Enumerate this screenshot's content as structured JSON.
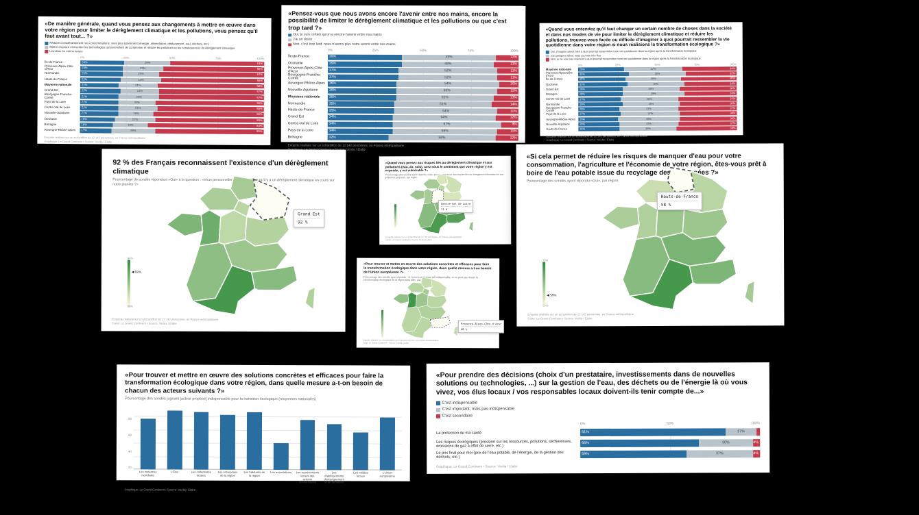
{
  "colors": {
    "blue": "#2a6d9f",
    "light": "#b8c3cc",
    "red": "#c4394b",
    "map_low": "#f6f6d3",
    "map_high": "#2e8b3a",
    "background": "#000000"
  },
  "footers_common": {
    "sample": "Enquête réalisée sur un échantillon de 12 142 personnes, en France métropolitaine",
    "credit_chart": "Graphique: Le Grand Continent • Source: Veolia / Elabe",
    "credit_map": "Carte: Le Grand Continent • Source: Veolia / Elabe"
  },
  "chart_data": [
    {
      "id": "priorities",
      "type": "stacked-bar-h",
      "title": "«De manière générale, quand vous pensez aux changements à mettre en œuvre dans votre région pour limiter le dérèglement climatique et les pollutions, vous pensez qu'il faut avant tout... ?»",
      "axis_ticks": [
        "0%",
        "25%",
        "50%",
        "75%",
        "100%"
      ],
      "bold_row": "Moyenne nationale",
      "min_label": 4,
      "categories": [
        "Île-de-France",
        "Provence-Alpes-Côte d'Azur",
        "Normandie",
        "Hauts-de-France",
        "Moyenne nationale",
        "Grand Est",
        "Bourgogne-Franche-Comté",
        "Pays de la Loire",
        "Centre-Val de Loire",
        "Nouvelle-Aquitaine",
        "Occitanie",
        "Bretagne",
        "Auvergne-Rhône-Alpes"
      ],
      "series": [
        {
          "name": "Réduire considérablement nos consommations, vivre plus sobrement (énergie, alimentation, déplacement, eau, déchets, etc.)",
          "color": "#2a6d9f",
          "values": [
            24,
            23,
            23,
            22,
            21,
            22,
            21,
            21,
            21,
            21,
            19,
            18,
            17
          ]
        },
        {
          "name": "Mettre en place et inventer les technologies qui permettent de compenser et réduire les pollutions et les conséquences du dérèglement climatique",
          "color": "#b8c3cc",
          "values": [
            25,
            22,
            20,
            22,
            21,
            21,
            22,
            20,
            21,
            19,
            22,
            19,
            24
          ]
        },
        {
          "name": "Les deux en même temps",
          "color": "#c4394b",
          "values": [
            51,
            55,
            57,
            56,
            58,
            57,
            57,
            59,
            58,
            60,
            59,
            63,
            59
          ]
        }
      ],
      "footers": {
        "line1": "Enquête réalisée sur un échantillon de 12 142 personnes, en France métropolitaine",
        "line2": "Graphique: Le Grand Continent • Source: Veolia / Elabe"
      }
    },
    {
      "id": "avenir",
      "type": "stacked-bar-h",
      "title": "«Pensez-vous que nous avons encore l'avenir entre nos mains, encore la possibilité de limiter le dérèglement climatique et les pollutions ou que c'est trop tard ?»",
      "axis_ticks": [
        "0%",
        "25%",
        "50%",
        "75%",
        "100%"
      ],
      "bold_row": "Moyenne nationale",
      "min_label": 4,
      "categories": [
        "Île-de-France",
        "Occitanie",
        "Provence-Alpes-Côte d'Azur",
        "Bourgogne-Franche-Comté",
        "Auvergne-Rhône-Alpes",
        "Nouvelle-Aquitaine",
        "Moyenne nationale",
        "Normandie",
        "Hauts-de-France",
        "Grand Est",
        "Centre-Val de Loire",
        "Pays de la Loire",
        "Bretagne"
      ],
      "series": [
        {
          "name": "Oui, je suis certain qu'on a encore l'avenir entre nos mains",
          "color": "#2a6d9f",
          "values": [
            39,
            39,
            37,
            37,
            36,
            36,
            36,
            35,
            35,
            34,
            34,
            34,
            32
          ]
        },
        {
          "name": "J'ai un doute",
          "color": "#b8c3cc",
          "values": [
            49,
            48,
            52,
            52,
            54,
            53,
            51,
            51,
            54,
            54,
            57,
            55,
            56
          ]
        },
        {
          "name": "Non, c'est trop tard, nous n'avons plus notre avenir entre nos mains",
          "color": "#c4394b",
          "values": [
            12,
            13,
            11,
            11,
            10,
            11,
            13,
            14,
            11,
            12,
            9,
            11,
            12
          ]
        }
      ],
      "footers": {
        "line1": "Enquête réalisée sur un échantillon de 12 142 personnes, en France métropolitaine",
        "line2": "Graphique: Le Grand Continent • Source: Veolia / Elabe"
      }
    },
    {
      "id": "imagine",
      "type": "stacked-bar-h",
      "title": "«Quand vous entendez qu'il faut changer un certain nombre de choses dans la société et dans nos modes de vie pour limiter le dérèglement climatique et réduire les pollutions, trouvez-vous facile ou difficile d'imaginer à quoi pourrait ressembler la vie quotidienne dans votre région si nous réalisions la transformation écologique ?»",
      "axis_ticks": [
        "0%",
        "25%",
        "50%",
        "75%",
        "100%"
      ],
      "bold_row": "Moyenne nationale",
      "min_label": 4,
      "categories": [
        "Moyenne nationale",
        "Provence-Alpes-Côte d'Azur",
        "Île-de-France",
        "Occitanie",
        "Grand Est",
        "Bretagne",
        "Centre-Val de Loire",
        "Normandie",
        "Bourgogne-Franche-Comté",
        "Pays de la Loire",
        "Auvergne-Rhône-Alpes",
        "Nouvelle-Aquitaine",
        "Hauts-de-France"
      ],
      "series": [
        {
          "name": "Oui, j'imagine assez bien à quoi pourrait ressembler notre vie quotidienne dans la région après la transformation écologique",
          "color": "#2a6d9f",
          "values": [
            29,
            32,
            30,
            31,
            28,
            28,
            27,
            28,
            26,
            27,
            25,
            26,
            26
          ]
        },
        {
          "name": "J'ai quelques idées, mais ça reste très flou",
          "color": "#b8c3cc",
          "values": [
            37,
            36,
            35,
            36,
            36,
            39,
            36,
            36,
            37,
            37,
            39,
            37,
            36
          ]
        },
        {
          "name": "Non, je ne vois pas vraiment à quoi pourrait ressembler notre vie quotidienne dans la région après la transformation écologique",
          "color": "#c4394b",
          "values": [
            34,
            32,
            35,
            33,
            36,
            33,
            37,
            36,
            37,
            36,
            36,
            37,
            38
          ]
        }
      ],
      "footers": {
        "line1": "Enquête réalisée sur un échantillon de 12 142 personnes, en France métropolitaine",
        "line2": "Graphique: Le Grand Continent • Source: Veolia / Elabe"
      }
    },
    {
      "id": "map_dereglement",
      "type": "choropleth",
      "title": "92 % des Français reconnaissent l'existence d'un dérèglement climatique",
      "subtitle": "Pourcentage de sondés répondant «Oui» à la question : «Vous personnellement, diriez-vous qu'il y a un dérèglement climatique en cours sur notre planète ?»",
      "color_low": "#f6f6d3",
      "color_high": "#2e8b3a",
      "hover": {
        "region": "grand-est",
        "label": "Grand Est",
        "value": "92 %"
      },
      "legend": {
        "top": "94%",
        "bottom": "88%",
        "marker": "◀ 92%"
      },
      "region_shades": {
        "hauts-de-france": 0.4,
        "normandie": 0.38,
        "ile-de-france": 0.3,
        "bretagne": 0.6,
        "pays-de-la-loire": 0.68,
        "centre-val-de-loire": 0.28,
        "bourgogne-franche-comte": 0.33,
        "nouvelle-aquitaine": 0.52,
        "auvergne-rhone-alpes": 0.45,
        "occitanie": 0.88,
        "provence-alpes-cote-dazur": 0.55,
        "corse": 0.35
      },
      "footers": {
        "line1": "Enquête réalisée sur un échantillon de 12 142 personnes, en France métropolitaine",
        "line2": "Carte: Le Grand Continent • Source: Veolia / Elabe"
      }
    },
    {
      "id": "map_risques",
      "type": "choropleth",
      "title": "«Quand vous pensez aux risques liés au dérèglement climatique et aux pollutions (eau, air, sols), avez-vous le sentiment que votre région y est exposée, y est vulnérable ?»",
      "subtitle": "Pourcentage des sondés ayant répondu «Oui» pour au moins un des risques liés au dérèglement climatique et aux pollutions proposés, par région.",
      "color_low": "#f6f6d3",
      "color_high": "#2e8b3a",
      "hover": {
        "region": "centre-val-de-loire",
        "label": "Centre-Val de Loire",
        "value": "71 %"
      },
      "legend": {
        "top": "",
        "bottom": "",
        "marker": ""
      },
      "region_shades": {
        "hauts-de-france": 0.15,
        "normandie": 0.4,
        "ile-de-france": 0.3,
        "grand-est": 0.2,
        "bretagne": 0.45,
        "pays-de-la-loire": 0.4,
        "bourgogne-franche-comte": 0.15,
        "nouvelle-aquitaine": 0.55,
        "auvergne-rhone-alpes": 0.5,
        "occitanie": 0.85,
        "provence-alpes-cote-dazur": 0.8,
        "corse": 0.5
      },
      "footers": {
        "line1": "Enquête réalisée sur un échantillon de 12 142 personnes, en France métropolitaine",
        "line2": "Carte: Le Grand Continent • Source: Veolia / Elabe"
      }
    },
    {
      "id": "map_eau",
      "type": "choropleth",
      "title": "«Si cela permet de réduire les risques de manquer d'eau pour votre consommation, l'agriculture et l'économie de votre région, êtes-vous prêt à boire de l'eau potable issue du recyclage des eaux usées ?»",
      "subtitle": "Pourcentage des sondés ayant répondu «Oui», par région.",
      "color_low": "#f6f6d3",
      "color_high": "#2e8b3a",
      "hover": {
        "region": "hauts-de-france",
        "label": "Hauts-de-France",
        "value": "58 %"
      },
      "legend": {
        "top": "75%",
        "bottom": "55%",
        "marker": "◀ 58%"
      },
      "region_shades": {
        "normandie": 0.22,
        "ile-de-france": 0.3,
        "grand-est": 0.3,
        "bretagne": 0.38,
        "pays-de-la-loire": 0.35,
        "centre-val-de-loire": 0.45,
        "bourgogne-franche-comte": 0.45,
        "nouvelle-aquitaine": 0.55,
        "auvergne-rhone-alpes": 0.62,
        "occitanie": 0.88,
        "provence-alpes-cote-dazur": 0.6,
        "corse": 0.4
      },
      "footers": {
        "line1": "Enquête réalisée sur un échantillon de 12 142 personnes, en France métropolitaine",
        "line2": "Carte: Le Grand Continent • Source: Veolia / Elabe"
      }
    },
    {
      "id": "map_ue",
      "type": "choropleth",
      "title": "«Pour trouver et mettre en œuvre des solutions concrètes et efficaces pour faire la transformation écologique dans votre région, dans quelle mesure a-t-on besoin de l'Union européenne ?»",
      "subtitle": "Pourcentage des sondés ayant répondu : «L'Union européenne est indispensable, on ne peut pas réussir la transformation écologique de la région sans elle», par région.",
      "color_low": "#f6f6d3",
      "color_high": "#2e8b3a",
      "hover": {
        "region": "provence-alpes-cote-dazur",
        "label": "Provence-Alpes-Côte d'Azur",
        "value": "40 %"
      },
      "legend": {
        "top": "",
        "bottom": "",
        "marker": ""
      },
      "region_shades": {
        "hauts-de-france": 0.25,
        "normandie": 0.3,
        "ile-de-france": 0.4,
        "grand-est": 0.2,
        "bretagne": 0.5,
        "pays-de-la-loire": 0.9,
        "centre-val-de-loire": 0.45,
        "bourgogne-franche-comte": 0.3,
        "nouvelle-aquitaine": 0.3,
        "auvergne-rhone-alpes": 0.35,
        "occitanie": 0.3,
        "corse": 0.25
      },
      "footers": {
        "line1": "Enquête réalisée sur un échantillon de 12 142 personnes, en France métropolitaine",
        "line2": "Carte: Le Grand Continent • Source: Veolia / Elabe"
      }
    },
    {
      "id": "acteurs",
      "type": "bar",
      "title": "«Pour trouver et mettre en œuvre des solutions concrètes et efficaces pour faire la transformation écologique dans votre région, dans quelle mesure a-t-on besoin de chacun des acteurs suivants ?»",
      "subtitle": "Pourcentage des sondés jugeant [acteur proposé] indispensable pour la transition écologique (moyennes nationales)",
      "bar_color": "#2a6d9f",
      "yticks": [
        20,
        40,
        60,
        80
      ],
      "ymax": 95,
      "categories": [
        "Les instances mondiales",
        "L'État",
        "Les collectivités locales",
        "Les entreprises de la région",
        "Les habitants de la région",
        "Les associations",
        "Les représentants locaux des acteurs économiques",
        "Les établissements d'enseignement et de formation",
        "Les médias locaux",
        "L'Union européenne"
      ],
      "values": [
        76,
        89,
        87,
        83,
        87,
        40,
        75,
        69,
        57,
        79
      ],
      "footers": {
        "line2": "Graphique: Le Grand Continent • Source: Veolia / Elabe"
      }
    },
    {
      "id": "decisions",
      "type": "stacked-bar-h",
      "title": "«Pour prendre des décisions (choix d'un prestataire, investissements dans de nouvelles solutions ou technologies, ...) sur la gestion de l'eau, des déchets ou de l'énergie là où vous vivez, vos élus locaux / vos responsables locaux doivent-ils tenir compte de...»",
      "axis_ticks": [
        "0%",
        "50%",
        "100%"
      ],
      "bold_row": "",
      "min_label": 4,
      "categories": [
        "La protection de ma santé",
        "Les risques écologiques (pression sur les ressources, pollutions, sécheresses, émissions de gaz à effet de serre, etc.)",
        "Le prix final pour moi (prix de l'eau potable, de l'énergie, de la gestion des déchets, etc.)"
      ],
      "series": [
        {
          "name": "C'est indispensable",
          "color": "#2a6d9f",
          "values": [
            81,
            66,
            59
          ]
        },
        {
          "name": "C'est important, mais pas indispensable",
          "color": "#b8c3cc",
          "values": [
            17,
            30,
            37
          ]
        },
        {
          "name": "C'est secondaire",
          "color": "#c4394b",
          "values": [
            2,
            4,
            4
          ]
        }
      ],
      "footers": {
        "line2": "Graphique: Le Grand Continent • Source: Veolia / Elabe"
      }
    }
  ]
}
